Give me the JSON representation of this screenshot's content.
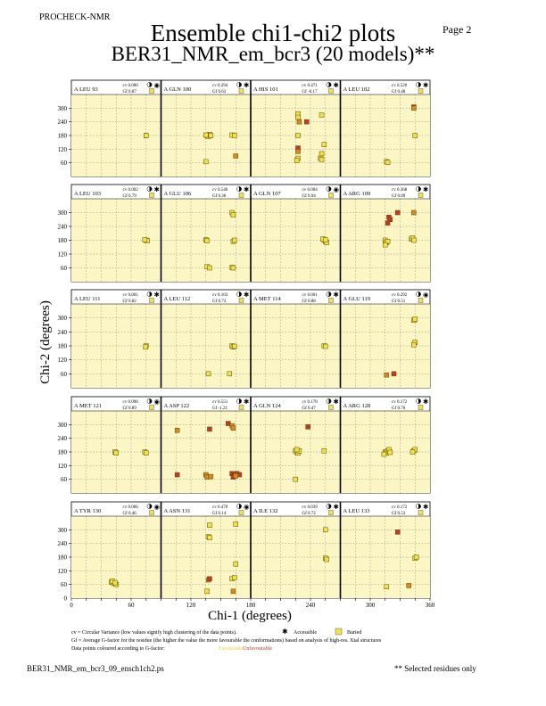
{
  "header": {
    "program": "PROCHECK-NMR",
    "page": "Page  2",
    "title": "Ensemble chi1-chi2 plots",
    "subtitle": "BER31_NMR_em_bcr3 (20 models)**"
  },
  "footer": {
    "filename": "BER31_NMR_em_bcr3_09_ensch1ch2.ps",
    "selected_note": "** Selected residues only"
  },
  "legend": {
    "cv_text": "cv = Circular Variance (low values signify high clustering of the data points).",
    "accessible": "Accessible",
    "buried": "Buried",
    "gf_text": "Gf = Average G-factor for the residue (the higher the value the more favourable the conformations) based on analysis of high-res. Xtal structures",
    "colour_text": "Data points coloured according to G-factor:",
    "favourable": "Favourable",
    "unfavourable": "Unfavourable"
  },
  "colors": {
    "panel_bg": "#fbf6c4",
    "favourable": "#f2e24a",
    "unfavourable": "#c0392b",
    "mid": "#d98a1e",
    "gridline": "#8a8a8a",
    "divider": "#000000"
  },
  "chart_data": {
    "type": "scatter",
    "xlabel": "Chi-1 (degrees)",
    "ylabel": "Chi-2 (degrees)",
    "xlim": [
      0,
      360
    ],
    "ylim": [
      0,
      360
    ],
    "xticks": [
      0,
      60,
      120,
      180,
      240,
      300,
      360
    ],
    "yticks": [
      60,
      120,
      180,
      240,
      300
    ],
    "grid": true,
    "panels": [
      {
        "label": "A LEU 93",
        "cv": "cv 0.000",
        "gf": "Gf 0.87",
        "access": "buried",
        "points": [
          [
            300,
            180,
            "f"
          ],
          [
            300,
            180,
            "f"
          ]
        ]
      },
      {
        "label": "A GLN 100",
        "cv": "cv 0.294",
        "gf": "Gf 0.63",
        "access": "accessible",
        "points": [
          [
            185,
            180,
            "f"
          ],
          [
            190,
            175,
            "f"
          ],
          [
            195,
            185,
            "f"
          ],
          [
            200,
            180,
            "f"
          ],
          [
            180,
            182,
            "f"
          ],
          [
            285,
            182,
            "f"
          ],
          [
            295,
            180,
            "f"
          ],
          [
            180,
            65,
            "f"
          ],
          [
            300,
            90,
            "m"
          ]
        ]
      },
      {
        "label": "A HIS 101",
        "cv": "cv 0.471",
        "gf": "Gf -0.17",
        "access": "accessible",
        "points": [
          [
            190,
            275,
            "f"
          ],
          [
            190,
            260,
            "f"
          ],
          [
            225,
            240,
            "u"
          ],
          [
            195,
            240,
            "m"
          ],
          [
            190,
            180,
            "f"
          ],
          [
            190,
            125,
            "u"
          ],
          [
            190,
            110,
            "m"
          ],
          [
            190,
            80,
            "f"
          ],
          [
            185,
            70,
            "f"
          ],
          [
            285,
            270,
            "f"
          ],
          [
            295,
            140,
            "f"
          ],
          [
            285,
            100,
            "f"
          ],
          [
            280,
            80,
            "f"
          ],
          [
            285,
            75,
            "f"
          ]
        ]
      },
      {
        "label": "A LEU 102",
        "cv": "cv 0.520",
        "gf": "Gf 0.48",
        "access": "accessible",
        "points": [
          [
            295,
            305,
            "u"
          ],
          [
            295,
            300,
            "m"
          ],
          [
            300,
            180,
            "f"
          ],
          [
            185,
            65,
            "f"
          ],
          [
            190,
            62,
            "f"
          ]
        ]
      },
      {
        "label": "A LEU 103",
        "cv": "cv 0.002",
        "gf": "Gf 0.79",
        "access": "accessible",
        "points": [
          [
            300,
            180,
            "f"
          ],
          [
            305,
            178,
            "f"
          ],
          [
            295,
            182,
            "f"
          ]
        ]
      },
      {
        "label": "A GLU 106",
        "cv": "cv 0.540",
        "gf": "Gf 0.36",
        "access": "accessible",
        "points": [
          [
            180,
            182,
            "f"
          ],
          [
            185,
            178,
            "f"
          ],
          [
            285,
            300,
            "f"
          ],
          [
            290,
            290,
            "f"
          ],
          [
            290,
            175,
            "f"
          ],
          [
            295,
            180,
            "f"
          ],
          [
            185,
            65,
            "f"
          ],
          [
            195,
            60,
            "f"
          ],
          [
            285,
            62,
            "f"
          ],
          [
            290,
            60,
            "f"
          ]
        ]
      },
      {
        "label": "A GLN 107",
        "cv": "cv 0.004",
        "gf": "Gf 0.94",
        "access": "buried",
        "points": [
          [
            295,
            180,
            "f"
          ],
          [
            300,
            175,
            "f"
          ],
          [
            305,
            170,
            "f"
          ],
          [
            290,
            185,
            "f"
          ],
          [
            300,
            182,
            "f"
          ]
        ]
      },
      {
        "label": "A ARG 109",
        "cv": "cv 0.368",
        "gf": "Gf 0.09",
        "access": "accessible",
        "points": [
          [
            195,
            280,
            "u"
          ],
          [
            200,
            270,
            "u"
          ],
          [
            190,
            255,
            "u"
          ],
          [
            230,
            300,
            "u"
          ],
          [
            295,
            300,
            "m"
          ],
          [
            180,
            180,
            "f"
          ],
          [
            185,
            170,
            "f"
          ],
          [
            190,
            175,
            "f"
          ],
          [
            180,
            160,
            "f"
          ],
          [
            285,
            185,
            "f"
          ],
          [
            290,
            190,
            "f"
          ],
          [
            295,
            180,
            "f"
          ]
        ]
      },
      {
        "label": "A LEU 111",
        "cv": "cv 0.001",
        "gf": "Gf 0.82",
        "access": "accessible",
        "points": [
          [
            300,
            180,
            "f"
          ],
          [
            298,
            175,
            "f"
          ]
        ]
      },
      {
        "label": "A LEU 112",
        "cv": "cv 0.103",
        "gf": "Gf 0.73",
        "access": "accessible",
        "points": [
          [
            285,
            180,
            "f"
          ],
          [
            290,
            175,
            "f"
          ],
          [
            295,
            178,
            "f"
          ],
          [
            190,
            60,
            "f"
          ],
          [
            275,
            60,
            "f"
          ]
        ]
      },
      {
        "label": "A MET 114",
        "cv": "cv 0.001",
        "gf": "Gf 0.88",
        "access": "accessible",
        "points": [
          [
            295,
            180,
            "f"
          ],
          [
            300,
            178,
            "f"
          ]
        ]
      },
      {
        "label": "A GLU 119",
        "cv": "cv 0.292",
        "gf": "Gf 0.51",
        "access": "buried",
        "points": [
          [
            295,
            290,
            "f"
          ],
          [
            300,
            295,
            "f"
          ],
          [
            300,
            195,
            "f"
          ],
          [
            295,
            185,
            "f"
          ],
          [
            185,
            55,
            "m"
          ],
          [
            215,
            60,
            "u"
          ]
        ]
      },
      {
        "label": "A MET 121",
        "cv": "cv 0.096",
        "gf": "Gf 0.89",
        "access": "buried",
        "points": [
          [
            175,
            180,
            "f"
          ],
          [
            180,
            175,
            "f"
          ],
          [
            295,
            180,
            "f"
          ],
          [
            300,
            175,
            "f"
          ]
        ]
      },
      {
        "label": "A ASP 122",
        "cv": "cv 0.551",
        "gf": "Gf -1.21",
        "access": "accessible",
        "points": [
          [
            65,
            275,
            "m"
          ],
          [
            195,
            280,
            "u"
          ],
          [
            270,
            305,
            "u"
          ],
          [
            285,
            295,
            "m"
          ],
          [
            290,
            285,
            "m"
          ],
          [
            65,
            80,
            "u"
          ],
          [
            180,
            80,
            "m"
          ],
          [
            185,
            70,
            "m"
          ],
          [
            200,
            72,
            "m"
          ],
          [
            285,
            85,
            "u"
          ],
          [
            295,
            80,
            "u"
          ],
          [
            305,
            85,
            "u"
          ],
          [
            315,
            80,
            "u"
          ],
          [
            290,
            70,
            "u"
          ],
          [
            300,
            75,
            "m"
          ]
        ]
      },
      {
        "label": "A GLN 124",
        "cv": "cv 0.170",
        "gf": "Gf 0.47",
        "access": "accessible",
        "points": [
          [
            180,
            185,
            "f"
          ],
          [
            185,
            180,
            "f"
          ],
          [
            190,
            175,
            "f"
          ],
          [
            195,
            185,
            "f"
          ],
          [
            185,
            190,
            "f"
          ],
          [
            230,
            290,
            "u"
          ],
          [
            295,
            185,
            "f"
          ],
          [
            180,
            60,
            "f"
          ]
        ]
      },
      {
        "label": "A ARG 128",
        "cv": "cv 0.172",
        "gf": "Gf 0.70",
        "access": "accessible",
        "points": [
          [
            180,
            180,
            "f"
          ],
          [
            185,
            175,
            "f"
          ],
          [
            190,
            185,
            "f"
          ],
          [
            195,
            190,
            "f"
          ],
          [
            175,
            170,
            "f"
          ],
          [
            200,
            178,
            "f"
          ],
          [
            295,
            185,
            "f"
          ],
          [
            300,
            190,
            "f"
          ],
          [
            290,
            180,
            "f"
          ]
        ]
      },
      {
        "label": "A TYR 130",
        "cv": "cv 0.006",
        "gf": "Gf 0.46",
        "access": "buried",
        "points": [
          [
            160,
            70,
            "f"
          ],
          [
            170,
            65,
            "f"
          ],
          [
            180,
            60,
            "f"
          ],
          [
            165,
            75,
            "f"
          ],
          [
            175,
            68,
            "f"
          ]
        ]
      },
      {
        "label": "A ASN 131",
        "cv": "cv 0.470",
        "gf": "Gf 0.14",
        "access": "buried",
        "points": [
          [
            195,
            320,
            "f"
          ],
          [
            300,
            325,
            "f"
          ],
          [
            190,
            270,
            "f"
          ],
          [
            195,
            265,
            "f"
          ],
          [
            300,
            150,
            "f"
          ],
          [
            190,
            80,
            "m"
          ],
          [
            195,
            85,
            "u"
          ],
          [
            285,
            85,
            "f"
          ],
          [
            295,
            90,
            "f"
          ],
          [
            185,
            30,
            "f"
          ],
          [
            290,
            30,
            "m"
          ]
        ]
      },
      {
        "label": "A ILE 132",
        "cv": "cv 0.039",
        "gf": "Gf 0.72",
        "access": "accessible",
        "points": [
          [
            300,
            300,
            "f"
          ],
          [
            300,
            175,
            "f"
          ],
          [
            305,
            170,
            "f"
          ]
        ]
      },
      {
        "label": "A LEU 133",
        "cv": "cv 0.172",
        "gf": "Gf 0.53",
        "access": "accessible",
        "points": [
          [
            230,
            290,
            "u"
          ],
          [
            300,
            175,
            "f"
          ],
          [
            305,
            180,
            "f"
          ],
          [
            185,
            50,
            "f"
          ],
          [
            275,
            55,
            "m"
          ]
        ]
      }
    ]
  }
}
